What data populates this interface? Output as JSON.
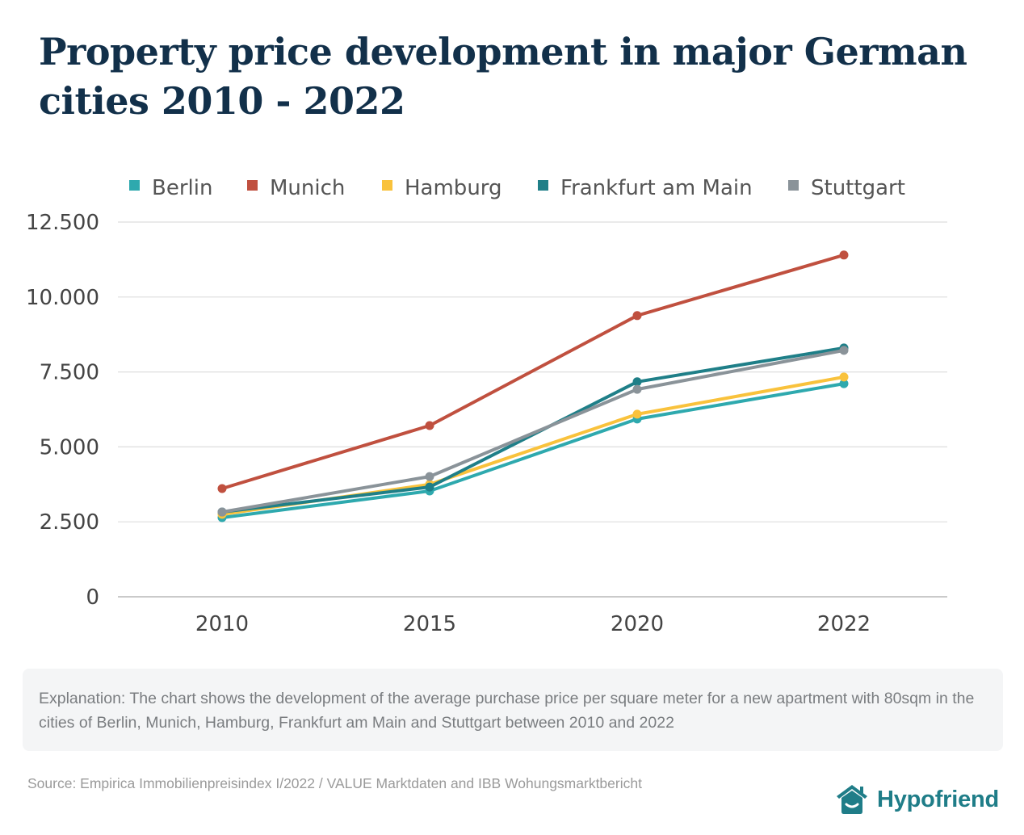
{
  "header": {
    "title": "Property price development in major German cities 2010 - 2022"
  },
  "chart_data": {
    "type": "line",
    "title": "Property price development in major German cities 2010 - 2022",
    "xlabel": "",
    "ylabel": "",
    "x": [
      "2010",
      "2015",
      "2020",
      "2022"
    ],
    "ylim": [
      0,
      12500
    ],
    "yticks": [
      0,
      2500,
      5000,
      7500,
      10000,
      12500
    ],
    "ytick_labels": [
      "0",
      "2.500",
      "5.000",
      "7.500",
      "10.000",
      "12.500"
    ],
    "grid": true,
    "legend_position": "top",
    "series": [
      {
        "name": "Berlin",
        "color": "#2ea9ae",
        "values": [
          2640,
          3530,
          5930,
          7110
        ]
      },
      {
        "name": "Munich",
        "color": "#c0503f",
        "values": [
          3610,
          5710,
          9380,
          11400
        ]
      },
      {
        "name": "Hamburg",
        "color": "#f9c23c",
        "values": [
          2750,
          3750,
          6090,
          7330
        ]
      },
      {
        "name": "Frankfurt am Main",
        "color": "#1f7f88",
        "values": [
          2830,
          3660,
          7170,
          8300
        ]
      },
      {
        "name": "Stuttgart",
        "color": "#8a9399",
        "values": [
          2830,
          4010,
          6920,
          8220
        ]
      }
    ]
  },
  "explanation": {
    "text": "Explanation: The chart shows the development of the average purchase price per square meter for a new apartment with 80sqm in the cities of Berlin, Munich, Hamburg, Frankfurt am Main and Stuttgart between 2010 and 2022"
  },
  "source": {
    "text": "Source: Empirica Immobilienpreisindex I/2022  / VALUE Marktdaten and IBB Wohungsmarktbericht"
  },
  "brand": {
    "name": "Hypofriend",
    "icon": "house-smile-icon",
    "color": "#1f7d88"
  }
}
